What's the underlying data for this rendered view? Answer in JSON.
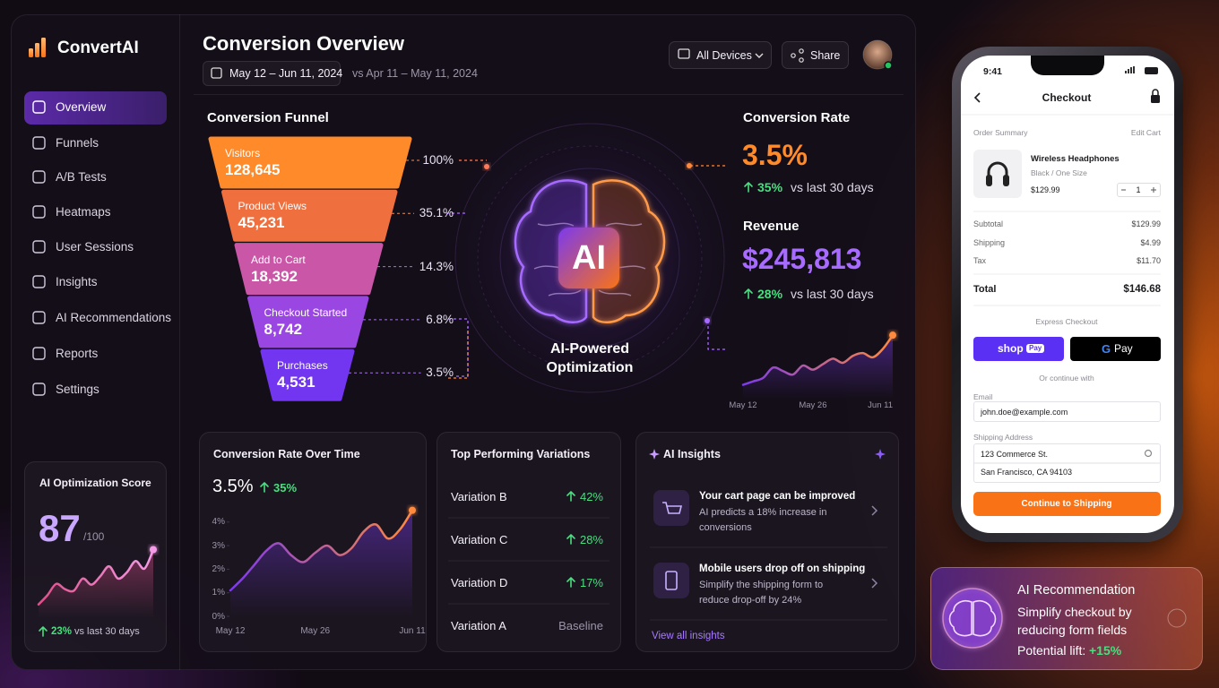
{
  "app": {
    "name": "ConvertAI"
  },
  "nav": [
    "Overview",
    "Funnels",
    "A/B Tests",
    "Heatmaps",
    "User Sessions",
    "Insights",
    "AI Recommendations",
    "Reports",
    "Settings"
  ],
  "score": {
    "title": "AI Optimization Score",
    "value": "87",
    "max": "/100",
    "change": "23%",
    "note": "vs last 30 days"
  },
  "header": {
    "title": "Conversion Overview",
    "date_range": "May 12 – Jun 11, 2024",
    "compare": "vs Apr 11 – May 11, 2024",
    "devices": "All Devices",
    "share": "Share"
  },
  "funnel": {
    "title": "Conversion Funnel",
    "stages": [
      {
        "label": "Visitors",
        "value": "128,645",
        "percent": "100%"
      },
      {
        "label": "Product Views",
        "value": "45,231",
        "percent": "35.1%"
      },
      {
        "label": "Add to Cart",
        "value": "18,392",
        "percent": "14.3%"
      },
      {
        "label": "Checkout Started",
        "value": "8,742",
        "percent": "6.8%"
      },
      {
        "label": "Purchases",
        "value": "4,531",
        "percent": "3.5%"
      }
    ]
  },
  "ai": {
    "badge": "AI",
    "caption": [
      "AI-Powered",
      "Optimization"
    ]
  },
  "conversion_rate": {
    "title": "Conversion Rate",
    "value": "3.5%",
    "change": "35%",
    "note": "vs last 30 days"
  },
  "revenue": {
    "title": "Revenue",
    "value": "$245,813",
    "change": "28%",
    "note": "vs last 30 days"
  },
  "rate_card": {
    "title": "Conversion Rate Over Time",
    "value": "3.5%",
    "change": "35%"
  },
  "variations": {
    "title": "Top Performing Variations",
    "rows": [
      [
        "Variation B",
        "42%"
      ],
      [
        "Variation C",
        "28%"
      ],
      [
        "Variation D",
        "17%"
      ],
      [
        "Variation A",
        "Baseline"
      ]
    ]
  },
  "insights": {
    "title": "AI Insights",
    "items": [
      {
        "title": "Your cart page can be improved",
        "text": "AI predicts a 18% increase in conversions"
      },
      {
        "title": "Mobile users drop off on shipping",
        "text": "Simplify the shipping form to reduce drop-off by 24%"
      }
    ],
    "link": "View all insights"
  },
  "phone": {
    "time": "9:41",
    "title": "Checkout",
    "summary": "Order Summary",
    "edit": "Edit Cart",
    "product": {
      "name": "Wireless Headphones",
      "variant": "Black / One Size",
      "price": "$129.99",
      "qty": "1"
    },
    "rows": [
      [
        "Subtotal",
        "$129.99"
      ],
      [
        "Shipping",
        "$4.99"
      ],
      [
        "Tax",
        "$11.70"
      ]
    ],
    "total": [
      "Total",
      "$146.68"
    ],
    "express": "Express Checkout",
    "shop_pay": [
      "shop",
      "Pay"
    ],
    "google_pay": [
      "G",
      "Pay"
    ],
    "or": "Or continue with",
    "email_label": "Email",
    "email": "john.doe@example.com",
    "address_label": "Shipping Address",
    "address": [
      "123 Commerce St.",
      "San Francisco, CA 94103"
    ],
    "button": "Continue to Shipping"
  },
  "recommendation": {
    "title": "AI Recommendation",
    "text": "Simplify checkout by reducing form fields",
    "lift_label": "Potential lift:",
    "lift": "+15%"
  },
  "chart_data": [
    {
      "type": "line",
      "categories": [
        "May 12",
        null,
        null,
        null,
        null,
        null,
        null,
        "May 26",
        null,
        null,
        null,
        null,
        null,
        null,
        null,
        "Jun 11"
      ],
      "values": [
        20,
        25,
        30,
        45,
        40,
        35,
        48,
        42,
        50,
        58,
        52,
        62,
        66,
        60,
        72,
        92
      ],
      "ylim": [
        0,
        100
      ],
      "colors": [
        "#7c3aed",
        "#ff8a3d"
      ]
    },
    {
      "type": "line",
      "categories": [
        "May 12",
        null,
        null,
        null,
        null,
        null,
        null,
        "May 26",
        null,
        null,
        null,
        null,
        null,
        null,
        null,
        "Jun 11"
      ],
      "values": [
        1.1,
        1.6,
        2.2,
        2.8,
        3.1,
        2.6,
        2.3,
        2.7,
        3.0,
        2.6,
        2.9,
        3.6,
        3.9,
        3.3,
        3.7,
        4.5
      ],
      "ylim": [
        0,
        4.6
      ],
      "yticks": [
        {
          "value": 0,
          "label": "0%"
        },
        {
          "value": 1,
          "label": "1%"
        },
        {
          "value": 2,
          "label": "2%"
        },
        {
          "value": 3,
          "label": "3%"
        },
        {
          "value": 4,
          "label": "4%"
        }
      ],
      "colors": [
        "#7c3aed",
        "#ff8a3d"
      ]
    },
    {
      "type": "line",
      "values": [
        18,
        30,
        45,
        38,
        36,
        52,
        44,
        55,
        68,
        52,
        60,
        75,
        65,
        90
      ],
      "ylim": [
        0,
        100
      ],
      "colors": [
        "#e0508a",
        "#f39be6"
      ]
    }
  ]
}
